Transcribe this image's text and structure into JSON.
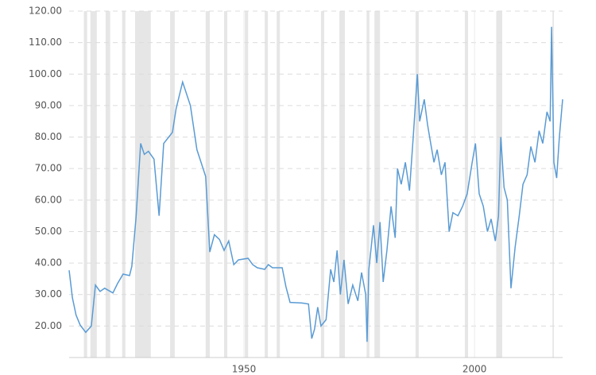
{
  "chart_data": {
    "type": "line",
    "x": [
      1912.1,
      1912.8,
      1913.6,
      1914.5,
      1915.7,
      1916.9,
      1917.8,
      1918.8,
      1919.8,
      1921.6,
      1922.6,
      1923.8,
      1925.2,
      1925.7,
      1926.6,
      1927.6,
      1928.4,
      1929.3,
      1930.5,
      1931.6,
      1932.6,
      1934.5,
      1935.3,
      1936.7,
      1938.4,
      1939.8,
      1941.7,
      1942.6,
      1943.6,
      1944.7,
      1945.7,
      1946.7,
      1947.8,
      1948.8,
      1950.9,
      1951.9,
      1952.9,
      1954.5,
      1955.3,
      1956.2,
      1958.3,
      1959.1,
      1960,
      1962.6,
      1964,
      1964.7,
      1965.3,
      1966,
      1966.7,
      1967.8,
      1968.8,
      1969.5,
      1970.2,
      1970.9,
      1971.7,
      1972.6,
      1973.6,
      1974.7,
      1975.5,
      1976.4,
      1976.7,
      1977.1,
      1978.1,
      1978.8,
      1979.5,
      1980.2,
      1981,
      1981.9,
      1982.8,
      1983.3,
      1984.1,
      1985,
      1985.9,
      1986.7,
      1987.6,
      1988.1,
      1989.1,
      1989.8,
      1990.5,
      1991.2,
      1991.9,
      1992.8,
      1993.6,
      1994.5,
      1995.3,
      1996.4,
      1997.4,
      1998.4,
      1999.5,
      2000.2,
      2001,
      2001.9,
      2002.8,
      2003.6,
      2004.5,
      2005.2,
      2005.7,
      2006.4,
      2007.1,
      2007.9,
      2008.8,
      2009.7,
      2010.5,
      2011.4,
      2012.2,
      2013.1,
      2014,
      2014.8,
      2015.7,
      2016.4,
      2016.7,
      2017.2,
      2017.8,
      2018.4,
      2019.1
    ],
    "series": [
      {
        "color": "#5a9bd4",
        "values": [
          37.7,
          29,
          23.5,
          20.3,
          18,
          20,
          33,
          31,
          32,
          30.5,
          33.5,
          36.5,
          36,
          39,
          54.5,
          78,
          74.5,
          75.5,
          73,
          55,
          78,
          81.5,
          89,
          97.5,
          90,
          76,
          67.5,
          43.5,
          49,
          47.5,
          44,
          47,
          39.5,
          41,
          41.5,
          39.5,
          38.5,
          38,
          39.5,
          38.5,
          38.5,
          32.5,
          27.5,
          27.3,
          27,
          16,
          19,
          26,
          20,
          22,
          38,
          34,
          44,
          30,
          41,
          27,
          33,
          28,
          37,
          30,
          15,
          38,
          52,
          40,
          53,
          34,
          44,
          58,
          48,
          70,
          65,
          72,
          63,
          80,
          100,
          85,
          92,
          84,
          78,
          72,
          76,
          68,
          72,
          50,
          56,
          55,
          58,
          62,
          72,
          78,
          62,
          58,
          50,
          54,
          47,
          55,
          80,
          64,
          60,
          32,
          45,
          55,
          65,
          68,
          77,
          72,
          82,
          78,
          88,
          85,
          115,
          72,
          67,
          80,
          92
        ]
      }
    ],
    "shading": [
      [
        1915.3,
        1916.0
      ],
      [
        1916.7,
        1918.1
      ],
      [
        1920.0,
        1921.0
      ],
      [
        1923.6,
        1924.3
      ],
      [
        1926.4,
        1929.8
      ],
      [
        1934.0,
        1935.0
      ],
      [
        1941.7,
        1942.6
      ],
      [
        1945.7,
        1946.4
      ],
      [
        1950.2,
        1950.9
      ],
      [
        1954.5,
        1955.2
      ],
      [
        1957.1,
        1957.8
      ],
      [
        1966.7,
        1967.4
      ],
      [
        1970.7,
        1971.9
      ],
      [
        1976.6,
        1977.2
      ],
      [
        1978.3,
        1979.5
      ],
      [
        1987.2,
        1987.9
      ],
      [
        1997.9,
        1998.6
      ],
      [
        2004.7,
        2006.0
      ],
      [
        2016.9,
        2017.2
      ]
    ],
    "shading_color": "#e6e6e6",
    "xlim": [
      1912.1,
      2019.1
    ],
    "xticks": [
      1950,
      2000
    ],
    "ylim": [
      10,
      120
    ],
    "yticks": [
      {
        "value": 20,
        "label": "20.00"
      },
      {
        "value": 30,
        "label": "30.00"
      },
      {
        "value": 40,
        "label": "40.00"
      },
      {
        "value": 50,
        "label": "50.00"
      },
      {
        "value": 60,
        "label": "60.00"
      },
      {
        "value": 70,
        "label": "70.00"
      },
      {
        "value": 80,
        "label": "80.00"
      },
      {
        "value": 90,
        "label": "90.00"
      },
      {
        "value": 100,
        "label": "100.00"
      },
      {
        "value": 110,
        "label": "110.00"
      },
      {
        "value": 120,
        "label": "120.00"
      }
    ],
    "grid": true
  }
}
